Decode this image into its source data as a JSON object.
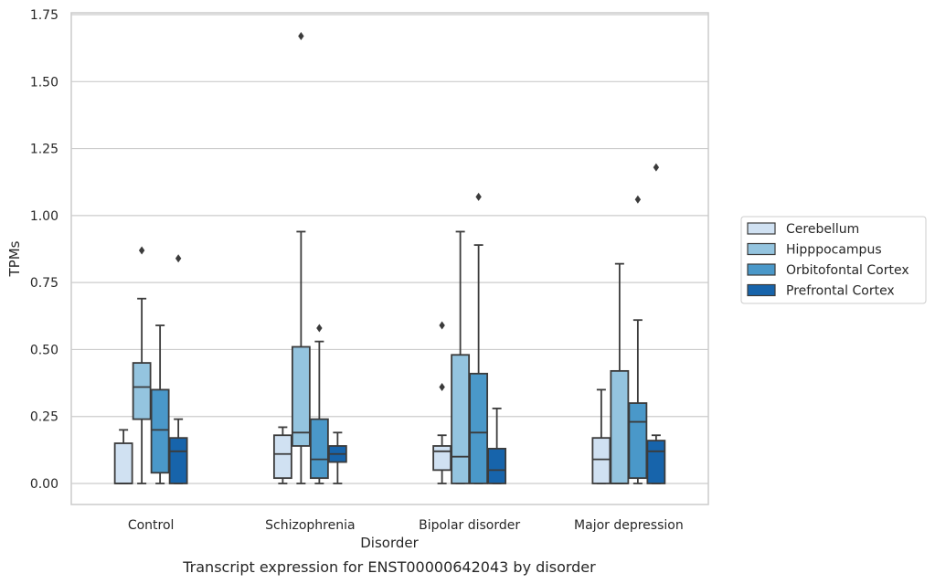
{
  "chart_data": {
    "type": "box",
    "title": "",
    "caption": "Transcript expression for ENST00000642043 by disorder",
    "xlabel": "Disorder",
    "ylabel": "TPMs",
    "ylim": [
      -0.08,
      1.76
    ],
    "yticks": [
      "0.00",
      "0.25",
      "0.50",
      "0.75",
      "1.00",
      "1.25",
      "1.50",
      "1.75"
    ],
    "grid": "horizontal",
    "legend_position": "right",
    "categories": [
      "Control",
      "Schizophrenia",
      "Bipolar disorder",
      "Major depression"
    ],
    "series": [
      {
        "name": "Cerebellum",
        "color": "#d0e1f2",
        "boxes": [
          {
            "whislo": 0.0,
            "q1": 0.0,
            "med": 0.0,
            "q3": 0.15,
            "whishi": 0.2,
            "fliers": []
          },
          {
            "whislo": 0.0,
            "q1": 0.02,
            "med": 0.11,
            "q3": 0.18,
            "whishi": 0.21,
            "fliers": []
          },
          {
            "whislo": 0.0,
            "q1": 0.05,
            "med": 0.12,
            "q3": 0.14,
            "whishi": 0.18,
            "fliers": [
              0.36,
              0.59
            ]
          },
          {
            "whislo": 0.0,
            "q1": 0.0,
            "med": 0.09,
            "q3": 0.17,
            "whishi": 0.35,
            "fliers": []
          }
        ]
      },
      {
        "name": "Hipppocampus",
        "color": "#94c4df",
        "boxes": [
          {
            "whislo": 0.0,
            "q1": 0.24,
            "med": 0.36,
            "q3": 0.45,
            "whishi": 0.69,
            "fliers": [
              0.87
            ]
          },
          {
            "whislo": 0.0,
            "q1": 0.14,
            "med": 0.19,
            "q3": 0.51,
            "whishi": 0.94,
            "fliers": [
              1.67
            ]
          },
          {
            "whislo": 0.0,
            "q1": 0.0,
            "med": 0.1,
            "q3": 0.48,
            "whishi": 0.94,
            "fliers": []
          },
          {
            "whislo": 0.0,
            "q1": 0.0,
            "med": 0.0,
            "q3": 0.42,
            "whishi": 0.82,
            "fliers": []
          }
        ]
      },
      {
        "name": "Orbitofontal Cortex",
        "color": "#4a98c9",
        "boxes": [
          {
            "whislo": 0.0,
            "q1": 0.04,
            "med": 0.2,
            "q3": 0.35,
            "whishi": 0.59,
            "fliers": []
          },
          {
            "whislo": 0.0,
            "q1": 0.02,
            "med": 0.09,
            "q3": 0.24,
            "whishi": 0.53,
            "fliers": [
              0.58
            ]
          },
          {
            "whislo": 0.0,
            "q1": 0.0,
            "med": 0.19,
            "q3": 0.41,
            "whishi": 0.89,
            "fliers": [
              1.07
            ]
          },
          {
            "whislo": 0.0,
            "q1": 0.02,
            "med": 0.23,
            "q3": 0.3,
            "whishi": 0.61,
            "fliers": [
              1.06
            ]
          }
        ]
      },
      {
        "name": "Prefrontal Cortex",
        "color": "#1764ab",
        "boxes": [
          {
            "whislo": 0.0,
            "q1": 0.0,
            "med": 0.12,
            "q3": 0.17,
            "whishi": 0.24,
            "fliers": [
              0.84
            ]
          },
          {
            "whislo": 0.0,
            "q1": 0.08,
            "med": 0.11,
            "q3": 0.14,
            "whishi": 0.19,
            "fliers": []
          },
          {
            "whislo": 0.0,
            "q1": 0.0,
            "med": 0.05,
            "q3": 0.13,
            "whishi": 0.28,
            "fliers": []
          },
          {
            "whislo": 0.0,
            "q1": 0.0,
            "med": 0.12,
            "q3": 0.16,
            "whishi": 0.18,
            "fliers": [
              1.18
            ]
          }
        ]
      }
    ]
  }
}
